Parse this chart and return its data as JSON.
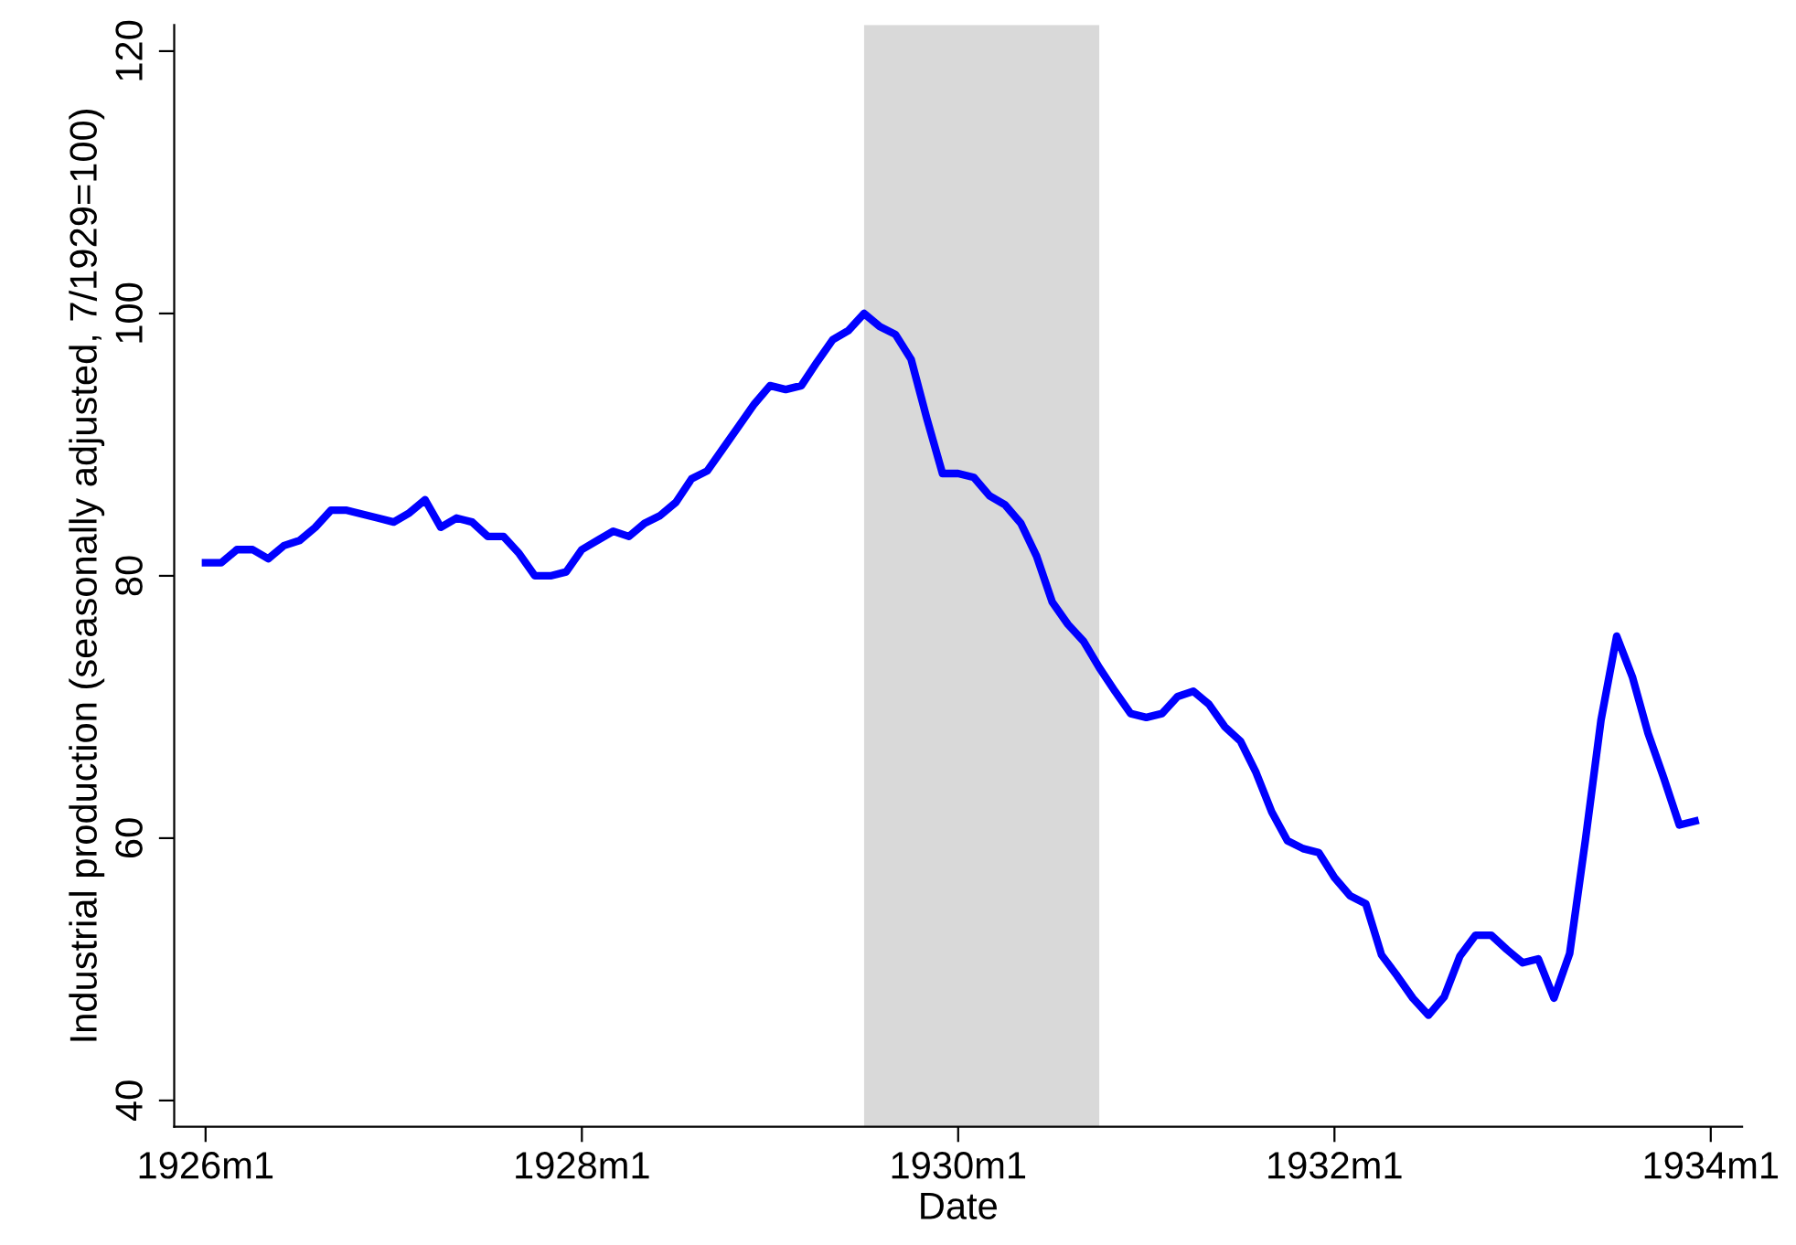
{
  "chart_data": {
    "type": "line",
    "xlabel": "Date",
    "ylabel": "Industrial production (seasonally adjusted, 7/1929=100)",
    "x": [
      "1926-01",
      "1926-02",
      "1926-03",
      "1926-04",
      "1926-05",
      "1926-06",
      "1926-07",
      "1926-08",
      "1926-09",
      "1926-10",
      "1926-11",
      "1926-12",
      "1927-01",
      "1927-02",
      "1927-03",
      "1927-04",
      "1927-05",
      "1927-06",
      "1927-07",
      "1927-08",
      "1927-09",
      "1927-10",
      "1927-11",
      "1927-12",
      "1928-01",
      "1928-02",
      "1928-03",
      "1928-04",
      "1928-05",
      "1928-06",
      "1928-07",
      "1928-08",
      "1928-09",
      "1928-10",
      "1928-11",
      "1928-12",
      "1929-01",
      "1929-02",
      "1929-03",
      "1929-04",
      "1929-05",
      "1929-06",
      "1929-07",
      "1929-08",
      "1929-09",
      "1929-10",
      "1929-11",
      "1929-12",
      "1930-01",
      "1930-02",
      "1930-03",
      "1930-04",
      "1930-05",
      "1930-06",
      "1930-07",
      "1930-08",
      "1930-09",
      "1930-10",
      "1930-11",
      "1930-12",
      "1931-01",
      "1931-02",
      "1931-03",
      "1931-04",
      "1931-05",
      "1931-06",
      "1931-07",
      "1931-08",
      "1931-09",
      "1931-10",
      "1931-11",
      "1931-12",
      "1932-01",
      "1932-02",
      "1932-03",
      "1932-04",
      "1932-05",
      "1932-06",
      "1932-07",
      "1932-08",
      "1932-09",
      "1932-10",
      "1932-11",
      "1932-12",
      "1933-01",
      "1933-02",
      "1933-03",
      "1933-04",
      "1933-05",
      "1933-06",
      "1933-07",
      "1933-08",
      "1933-09",
      "1933-10",
      "1933-11",
      "1933-12"
    ],
    "series": [
      {
        "color": "#0000ff",
        "values": [
          81,
          81,
          82,
          82,
          81.3,
          82.3,
          82.7,
          83.7,
          85,
          85,
          84.7,
          84.4,
          84.1,
          84.8,
          85.8,
          83.7,
          84.4,
          84.1,
          83,
          83,
          81.7,
          80,
          80,
          80.3,
          82,
          82.7,
          83.4,
          83,
          84,
          84.6,
          85.6,
          87.4,
          88,
          89.7,
          91.4,
          93.1,
          94.5,
          94.2,
          94.5,
          96.3,
          98,
          98.7,
          100,
          99,
          98.4,
          96.5,
          92,
          87.8,
          87.8,
          87.5,
          86.1,
          85.4,
          84,
          81.5,
          78,
          76.3,
          75,
          73,
          71.2,
          69.5,
          69.2,
          69.5,
          70.8,
          71.2,
          70.2,
          68.5,
          67.4,
          65,
          62,
          59.8,
          59.2,
          58.9,
          57,
          55.6,
          55,
          51.1,
          49.5,
          47.8,
          46.5,
          47.9,
          51,
          52.6,
          52.6,
          51.5,
          50.5,
          50.8,
          47.8,
          51.2,
          59.8,
          69,
          75.4,
          72.3,
          68,
          64.6,
          61,
          61.3
        ]
      }
    ],
    "xlim": [
      "1925-11",
      "1934-03"
    ],
    "xticks": [
      {
        "value": "1926-01",
        "label": "1926m1"
      },
      {
        "value": "1928-01",
        "label": "1928m1"
      },
      {
        "value": "1930-01",
        "label": "1930m1"
      },
      {
        "value": "1932-01",
        "label": "1932m1"
      },
      {
        "value": "1934-01",
        "label": "1934m1"
      }
    ],
    "ylim": [
      38,
      122
    ],
    "yticks": [
      40,
      60,
      80,
      100,
      120
    ],
    "bands": [
      {
        "axis": "x",
        "from": "1929-07",
        "to": "1930-10",
        "color": "#d9d9d9"
      }
    ],
    "grid": false,
    "legend": false,
    "line_style": "solid",
    "marker": "none"
  }
}
